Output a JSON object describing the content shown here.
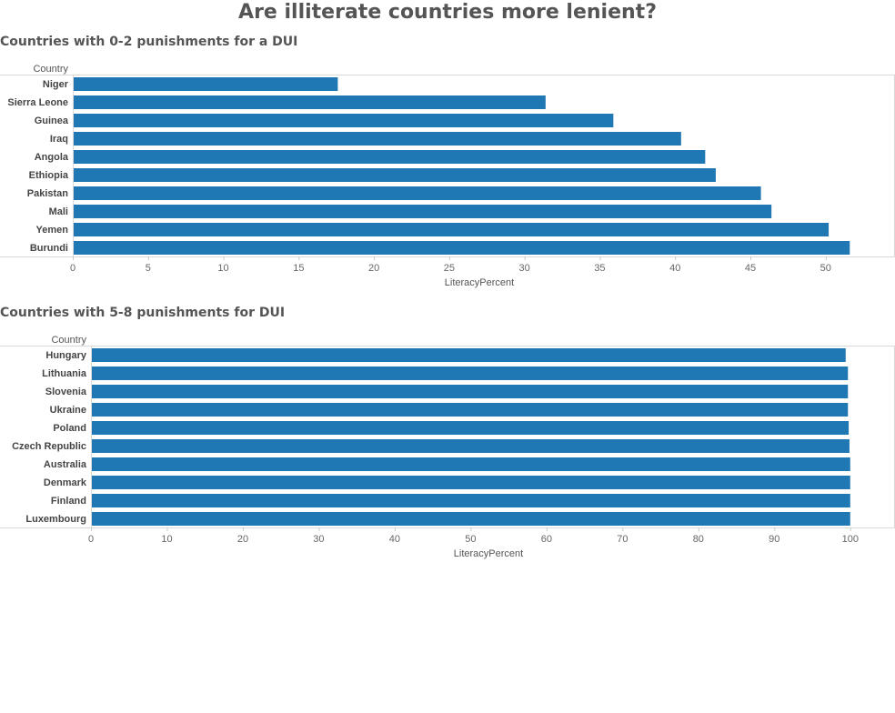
{
  "page": {
    "title": "Are illiterate countries more lenient?"
  },
  "chart_data": [
    {
      "type": "bar",
      "orientation": "horizontal",
      "title": "Countries with 0-2 punishments for a DUI",
      "row_header": "Country",
      "xlabel": "LiteracyPercent",
      "xlim": [
        0,
        54
      ],
      "xticks": [
        0,
        5,
        10,
        15,
        20,
        25,
        30,
        35,
        40,
        45,
        50
      ],
      "color": "#1f77b4",
      "categories": [
        "Niger",
        "Sierra Leone",
        "Guinea",
        "Iraq",
        "Angola",
        "Ethiopia",
        "Pakistan",
        "Mali",
        "Yemen",
        "Burundi"
      ],
      "values": [
        17.6,
        31.4,
        35.9,
        40.4,
        42.0,
        42.7,
        45.7,
        46.4,
        50.2,
        51.6
      ]
    },
    {
      "type": "bar",
      "orientation": "horizontal",
      "title": "Countries with 5-8 punishments for DUI",
      "row_header": "Country",
      "xlabel": "LiteracyPercent",
      "xlim": [
        0,
        104.7
      ],
      "xticks": [
        0,
        10,
        20,
        30,
        40,
        50,
        60,
        70,
        80,
        90,
        100
      ],
      "color": "#1f77b4",
      "categories": [
        "Hungary",
        "Lithuania",
        "Slovenia",
        "Ukraine",
        "Poland",
        "Czech Republic",
        "Australia",
        "Denmark",
        "Finland",
        "Luxembourg"
      ],
      "values": [
        99.4,
        99.7,
        99.7,
        99.7,
        99.8,
        99.9,
        100,
        100,
        100,
        100
      ]
    }
  ]
}
